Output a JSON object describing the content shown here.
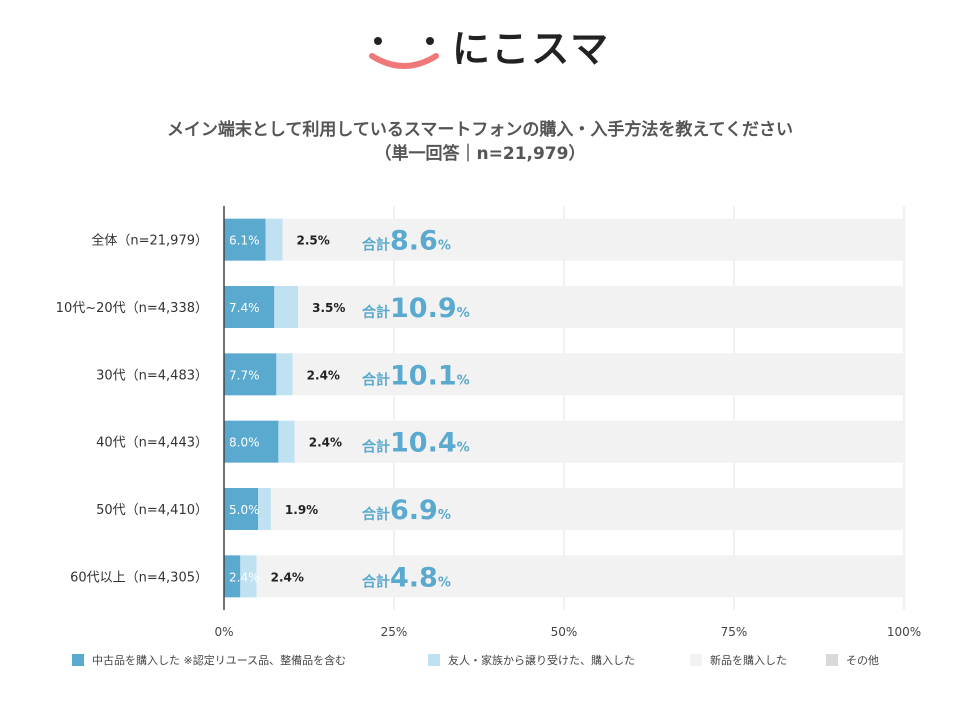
{
  "brand": {
    "name": "にこスマ",
    "colors": {
      "dots": "#222222",
      "smile": "#f07878"
    }
  },
  "title": {
    "line1": "メイン端末として利用しているスマートフォンの購入・入手方法を教えてください",
    "line2": "（単一回答｜n=21,979）"
  },
  "chart_data": {
    "type": "bar",
    "orientation": "horizontal",
    "stacked": true,
    "categories": [
      "全体（n=21,979）",
      "10代~20代（n=4,338）",
      "30代（n=4,483）",
      "40代（n=4,443）",
      "50代（n=4,410）",
      "60代以上（n=4,305）"
    ],
    "series": [
      {
        "name": "中古品を購入した ※認定リユース品、整備品を含む",
        "color": "#5aa9ce",
        "values": [
          6.1,
          7.4,
          7.7,
          8.0,
          5.0,
          2.4
        ],
        "labels": [
          "6.1%",
          "7.4%",
          "7.7%",
          "8.0%",
          "5.0%",
          "2.4%"
        ]
      },
      {
        "name": "友人・家族から譲り受けた、購入した",
        "color": "#bfe1f1",
        "values": [
          2.5,
          3.5,
          2.4,
          2.4,
          1.9,
          2.4
        ],
        "labels": [
          "2.5%",
          "3.5%",
          "2.4%",
          "2.4%",
          "1.9%",
          "2.4%"
        ]
      },
      {
        "name": "新品を購入した",
        "color": "#f2f2f2",
        "values": [
          91.4,
          89.1,
          89.9,
          89.6,
          93.1,
          95.2
        ]
      },
      {
        "name": "その他",
        "color": "#d9d9d9",
        "values": [
          0,
          0,
          0,
          0,
          0,
          0
        ]
      }
    ],
    "totals": {
      "prefix": "合計",
      "values": [
        "8.6",
        "10.9",
        "10.1",
        "10.4",
        "6.9",
        "4.8"
      ],
      "unit": "%",
      "color": "#5aa9ce"
    },
    "x_ticks": [
      "0%",
      "25%",
      "50%",
      "75%",
      "100%"
    ],
    "xlim": [
      0,
      100
    ],
    "legend": "bottom"
  }
}
